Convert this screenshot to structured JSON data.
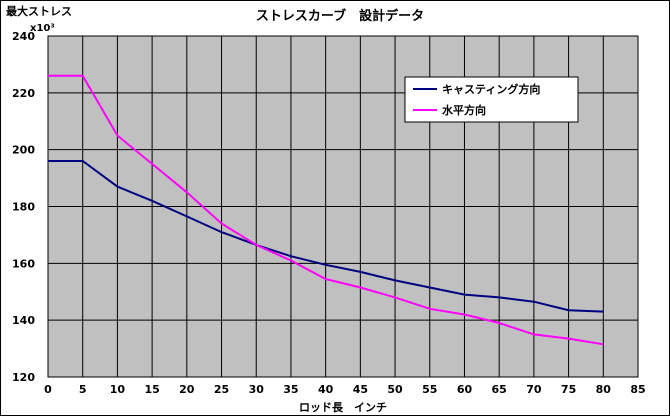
{
  "chart_data": {
    "type": "line",
    "title": "ストレスカーブ　設計データ",
    "ylabel": "最大ストレス",
    "yunit": "x10³",
    "xlabel": "ロッド長　インチ",
    "xlim": [
      0,
      85
    ],
    "ylim": [
      120,
      240
    ],
    "xticks": [
      0,
      5,
      10,
      15,
      20,
      25,
      30,
      35,
      40,
      45,
      50,
      55,
      60,
      65,
      70,
      75,
      80,
      85
    ],
    "yticks": [
      120,
      140,
      160,
      180,
      200,
      220,
      240
    ],
    "grid": true,
    "legend_position": "top-right",
    "series": [
      {
        "name": "キャスティング方向",
        "color": "#000080",
        "x": [
          0,
          5,
          10,
          15,
          20,
          25,
          30,
          35,
          40,
          45,
          50,
          55,
          60,
          65,
          70,
          75,
          80
        ],
        "y": [
          196,
          196,
          187,
          182,
          176.5,
          171,
          166.5,
          162.5,
          159.5,
          157,
          154,
          151.5,
          149,
          148,
          146.5,
          143.5,
          143
        ]
      },
      {
        "name": "水平方向",
        "color": "#ff00ff",
        "x": [
          0,
          5,
          10,
          15,
          20,
          25,
          30,
          35,
          40,
          45,
          50,
          55,
          60,
          65,
          70,
          75,
          80
        ],
        "y": [
          226,
          226,
          205,
          195,
          185,
          174,
          166.5,
          161,
          154.5,
          151.5,
          148,
          144,
          142,
          139,
          135,
          133.5,
          131.5
        ]
      }
    ]
  },
  "colors": {
    "plot_bg": "#c0c0c0",
    "grid": "#000000"
  }
}
